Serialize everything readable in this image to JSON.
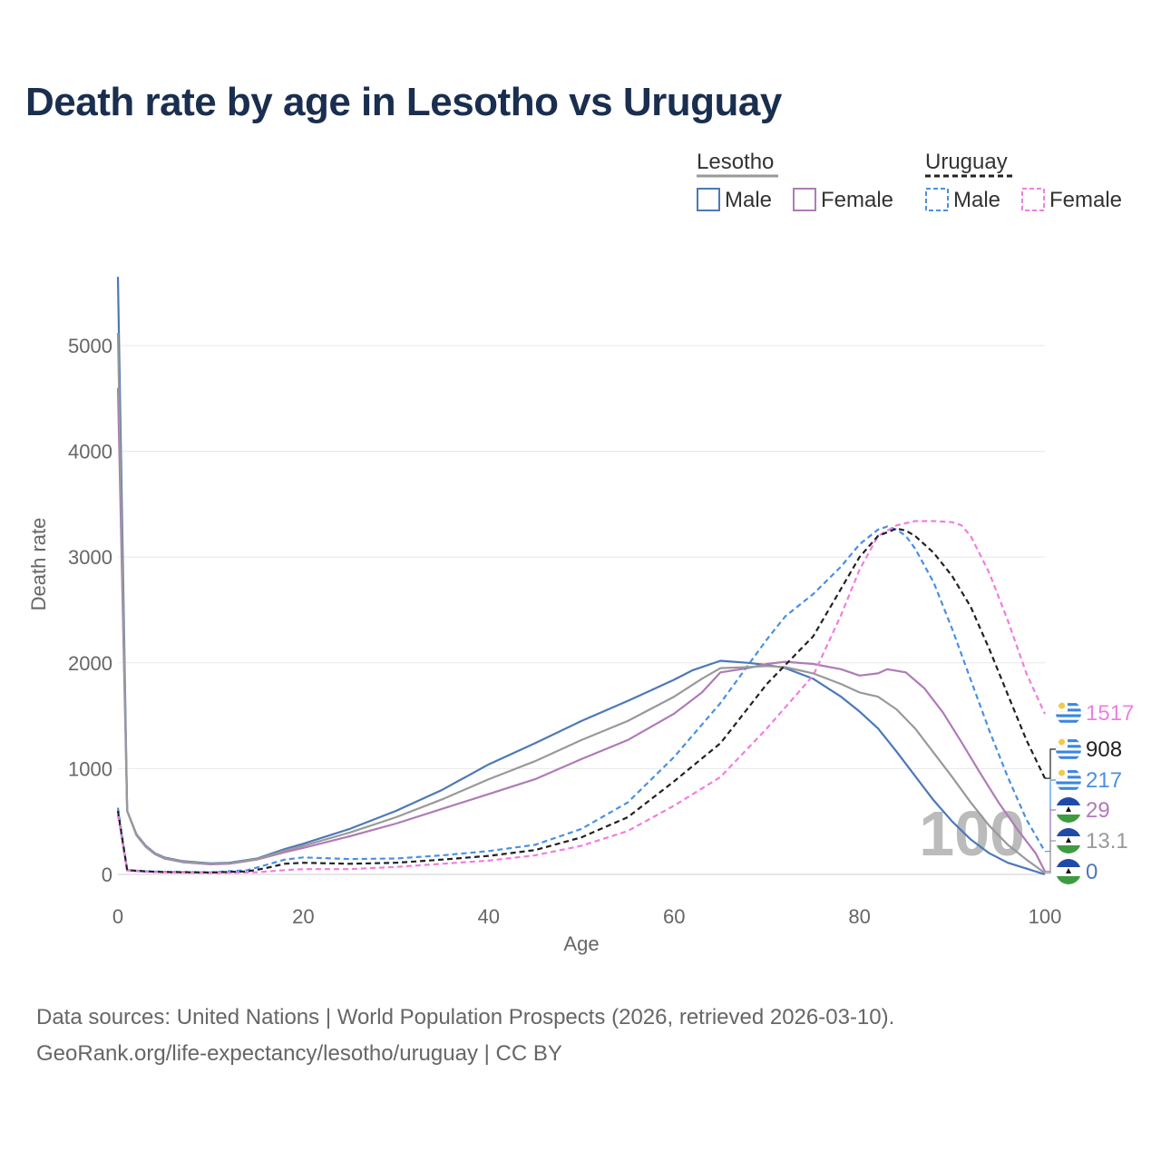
{
  "title": "Death rate by age in Lesotho vs Uruguay",
  "source_line1": "Data sources: United Nations | World Population Prospects (2026, retrieved 2026-03-10).",
  "source_line2": "GeoRank.org/life-expectancy/lesotho/uruguay | CC BY",
  "legend": {
    "groups": [
      {
        "country": "Lesotho",
        "color": "#999999",
        "dashed": false,
        "entries": [
          {
            "label": "Male",
            "color": "#4c78b8"
          },
          {
            "label": "Female",
            "color": "#b07ab8"
          }
        ]
      },
      {
        "country": "Uruguay",
        "color": "#222222",
        "dashed": true,
        "entries": [
          {
            "label": "Male",
            "color": "#4a90e2"
          },
          {
            "label": "Female",
            "color": "#f07ee0"
          }
        ]
      }
    ]
  },
  "chart_data": {
    "type": "line",
    "xlabel": "Age",
    "ylabel": "Death rate",
    "xlim": [
      0,
      100
    ],
    "ylim": [
      0,
      5600
    ],
    "xticks": [
      0,
      20,
      40,
      60,
      80,
      100
    ],
    "yticks": [
      0,
      1000,
      2000,
      3000,
      4000,
      5000
    ],
    "grid": true,
    "watermark": "100",
    "series": [
      {
        "name": "Lesotho Male",
        "color": "#4c78b8",
        "dashed": false,
        "points": [
          [
            0,
            5650
          ],
          [
            1,
            600
          ],
          [
            2,
            380
          ],
          [
            3,
            270
          ],
          [
            4,
            200
          ],
          [
            5,
            160
          ],
          [
            7,
            125
          ],
          [
            10,
            105
          ],
          [
            12,
            110
          ],
          [
            15,
            150
          ],
          [
            18,
            240
          ],
          [
            20,
            290
          ],
          [
            25,
            430
          ],
          [
            30,
            600
          ],
          [
            35,
            800
          ],
          [
            40,
            1040
          ],
          [
            45,
            1240
          ],
          [
            50,
            1450
          ],
          [
            55,
            1640
          ],
          [
            58,
            1760
          ],
          [
            60,
            1840
          ],
          [
            62,
            1930
          ],
          [
            65,
            2020
          ],
          [
            68,
            2000
          ],
          [
            70,
            1980
          ],
          [
            72,
            1950
          ],
          [
            75,
            1850
          ],
          [
            78,
            1680
          ],
          [
            80,
            1540
          ],
          [
            82,
            1380
          ],
          [
            84,
            1160
          ],
          [
            86,
            930
          ],
          [
            88,
            700
          ],
          [
            90,
            500
          ],
          [
            92,
            330
          ],
          [
            94,
            200
          ],
          [
            96,
            110
          ],
          [
            98,
            55
          ],
          [
            100,
            0
          ]
        ]
      },
      {
        "name": "Lesotho Female",
        "color": "#b07ab8",
        "dashed": false,
        "points": [
          [
            0,
            4600
          ],
          [
            1,
            600
          ],
          [
            2,
            370
          ],
          [
            3,
            260
          ],
          [
            4,
            190
          ],
          [
            5,
            150
          ],
          [
            7,
            115
          ],
          [
            10,
            95
          ],
          [
            12,
            100
          ],
          [
            15,
            140
          ],
          [
            18,
            210
          ],
          [
            20,
            250
          ],
          [
            25,
            360
          ],
          [
            30,
            480
          ],
          [
            35,
            620
          ],
          [
            40,
            760
          ],
          [
            45,
            900
          ],
          [
            50,
            1090
          ],
          [
            55,
            1270
          ],
          [
            60,
            1520
          ],
          [
            63,
            1720
          ],
          [
            65,
            1910
          ],
          [
            68,
            1950
          ],
          [
            70,
            1990
          ],
          [
            72,
            2010
          ],
          [
            75,
            1990
          ],
          [
            78,
            1940
          ],
          [
            80,
            1880
          ],
          [
            82,
            1900
          ],
          [
            83,
            1940
          ],
          [
            85,
            1910
          ],
          [
            87,
            1760
          ],
          [
            89,
            1530
          ],
          [
            91,
            1250
          ],
          [
            93,
            960
          ],
          [
            95,
            680
          ],
          [
            97,
            430
          ],
          [
            99,
            200
          ],
          [
            100,
            29
          ]
        ]
      },
      {
        "name": "Uruguay Male",
        "color": "#4a90e2",
        "dashed": true,
        "points": [
          [
            0,
            630
          ],
          [
            1,
            40
          ],
          [
            3,
            30
          ],
          [
            5,
            25
          ],
          [
            10,
            20
          ],
          [
            14,
            40
          ],
          [
            16,
            90
          ],
          [
            18,
            140
          ],
          [
            20,
            160
          ],
          [
            25,
            145
          ],
          [
            30,
            150
          ],
          [
            35,
            180
          ],
          [
            40,
            220
          ],
          [
            45,
            280
          ],
          [
            50,
            430
          ],
          [
            55,
            680
          ],
          [
            60,
            1110
          ],
          [
            65,
            1620
          ],
          [
            70,
            2220
          ],
          [
            72,
            2440
          ],
          [
            75,
            2650
          ],
          [
            78,
            2910
          ],
          [
            80,
            3120
          ],
          [
            82,
            3260
          ],
          [
            83,
            3290
          ],
          [
            84,
            3260
          ],
          [
            85,
            3200
          ],
          [
            86,
            3080
          ],
          [
            88,
            2760
          ],
          [
            90,
            2320
          ],
          [
            92,
            1840
          ],
          [
            94,
            1360
          ],
          [
            96,
            920
          ],
          [
            98,
            520
          ],
          [
            100,
            217
          ]
        ]
      },
      {
        "name": "Uruguay Female",
        "color": "#f07ee0",
        "dashed": true,
        "points": [
          [
            0,
            560
          ],
          [
            1,
            35
          ],
          [
            3,
            25
          ],
          [
            5,
            20
          ],
          [
            10,
            15
          ],
          [
            15,
            20
          ],
          [
            18,
            40
          ],
          [
            20,
            50
          ],
          [
            25,
            50
          ],
          [
            30,
            70
          ],
          [
            35,
            100
          ],
          [
            40,
            130
          ],
          [
            45,
            180
          ],
          [
            50,
            270
          ],
          [
            55,
            410
          ],
          [
            60,
            650
          ],
          [
            65,
            920
          ],
          [
            70,
            1380
          ],
          [
            75,
            1880
          ],
          [
            78,
            2450
          ],
          [
            80,
            2880
          ],
          [
            82,
            3200
          ],
          [
            84,
            3300
          ],
          [
            86,
            3340
          ],
          [
            88,
            3340
          ],
          [
            90,
            3330
          ],
          [
            91,
            3300
          ],
          [
            92,
            3200
          ],
          [
            94,
            2850
          ],
          [
            96,
            2400
          ],
          [
            98,
            1900
          ],
          [
            100,
            1517
          ]
        ]
      },
      {
        "name": "Lesotho",
        "color": "#999999",
        "dashed": false,
        "points": [
          [
            0,
            5120
          ],
          [
            1,
            600
          ],
          [
            2,
            375
          ],
          [
            3,
            265
          ],
          [
            4,
            195
          ],
          [
            5,
            155
          ],
          [
            7,
            120
          ],
          [
            10,
            100
          ],
          [
            12,
            105
          ],
          [
            15,
            145
          ],
          [
            18,
            225
          ],
          [
            20,
            270
          ],
          [
            25,
            395
          ],
          [
            30,
            540
          ],
          [
            35,
            710
          ],
          [
            40,
            900
          ],
          [
            45,
            1070
          ],
          [
            50,
            1270
          ],
          [
            55,
            1450
          ],
          [
            60,
            1680
          ],
          [
            63,
            1850
          ],
          [
            65,
            1950
          ],
          [
            68,
            1960
          ],
          [
            70,
            1970
          ],
          [
            72,
            1960
          ],
          [
            75,
            1900
          ],
          [
            78,
            1800
          ],
          [
            80,
            1720
          ],
          [
            82,
            1680
          ],
          [
            84,
            1560
          ],
          [
            86,
            1380
          ],
          [
            88,
            1150
          ],
          [
            90,
            920
          ],
          [
            92,
            680
          ],
          [
            94,
            460
          ],
          [
            96,
            280
          ],
          [
            98,
            140
          ],
          [
            100,
            13.1
          ]
        ]
      },
      {
        "name": "Uruguay",
        "color": "#222222",
        "dashed": true,
        "points": [
          [
            0,
            600
          ],
          [
            1,
            40
          ],
          [
            3,
            28
          ],
          [
            5,
            22
          ],
          [
            10,
            18
          ],
          [
            14,
            28
          ],
          [
            16,
            60
          ],
          [
            18,
            100
          ],
          [
            20,
            110
          ],
          [
            25,
            100
          ],
          [
            30,
            110
          ],
          [
            35,
            140
          ],
          [
            40,
            175
          ],
          [
            45,
            230
          ],
          [
            50,
            350
          ],
          [
            55,
            540
          ],
          [
            60,
            880
          ],
          [
            65,
            1240
          ],
          [
            70,
            1800
          ],
          [
            75,
            2250
          ],
          [
            78,
            2700
          ],
          [
            80,
            3000
          ],
          [
            82,
            3200
          ],
          [
            84,
            3270
          ],
          [
            85,
            3250
          ],
          [
            86,
            3200
          ],
          [
            88,
            3040
          ],
          [
            90,
            2820
          ],
          [
            92,
            2530
          ],
          [
            94,
            2130
          ],
          [
            96,
            1700
          ],
          [
            98,
            1270
          ],
          [
            100,
            908
          ]
        ]
      }
    ],
    "end_labels": [
      {
        "text": "1517",
        "color": "#f07ee0",
        "flag": "uruguay"
      },
      {
        "text": "908",
        "color": "#222222",
        "flag": "uruguay"
      },
      {
        "text": "217",
        "color": "#4a90e2",
        "flag": "uruguay"
      },
      {
        "text": "29",
        "color": "#b07ab8",
        "flag": "lesotho"
      },
      {
        "text": "13.1",
        "color": "#999999",
        "flag": "lesotho"
      },
      {
        "text": "0",
        "color": "#4c78b8",
        "flag": "lesotho"
      }
    ]
  }
}
